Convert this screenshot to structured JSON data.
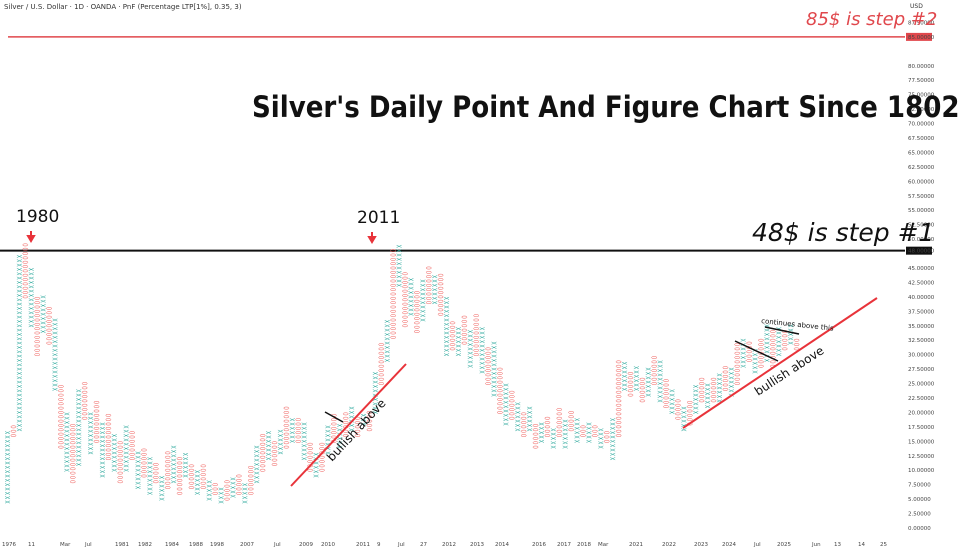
{
  "header": {
    "symbol": "Silver / U.S. Dollar · 1D · OANDA · PnF (Percentage LTP[1%], 0.35, 3)",
    "currency": "USD"
  },
  "annotations": {
    "title": "Silver's Daily Point And Figure Chart Since 1802",
    "step2": "85$ is step #2",
    "step1": "48$ is step #1",
    "year_1980": "1980",
    "year_2011": "2011",
    "bullish_above": "bullish above",
    "continues_above": "continues above this"
  },
  "colors": {
    "up": "#26a69a",
    "down": "#ef5350",
    "level_85": "#e0474c",
    "level_48": "#111111",
    "trendline": "#e8333a",
    "arrow": "#e8333a"
  },
  "chart_data": {
    "type": "point-and-figure",
    "symbol": "Silver / U.S. Dollar",
    "ylim": [
      0,
      90
    ],
    "yticks": [
      "0.00000",
      "2.50000",
      "5.00000",
      "7.50000",
      "10.00000",
      "12.50000",
      "15.00000",
      "17.50000",
      "20.00000",
      "22.50000",
      "25.00000",
      "27.50000",
      "30.00000",
      "32.50000",
      "35.00000",
      "37.50000",
      "40.00000",
      "42.50000",
      "45.00000",
      "48.00000",
      "50.00000",
      "52.50000",
      "55.00000",
      "57.50000",
      "60.00000",
      "62.50000",
      "65.00000",
      "67.50000",
      "70.00000",
      "72.50000",
      "75.00000",
      "77.50000",
      "80.00000",
      "85.00000",
      "87.50000"
    ],
    "highlighted_levels": [
      85,
      48
    ],
    "xticks": [
      "1976",
      "11",
      "Mar",
      "Jul",
      "1981",
      "1982",
      "1984",
      "1988",
      "1998",
      "2007",
      "Jul",
      "2009",
      "2010",
      "2011",
      "9",
      "Jul",
      "27",
      "2012",
      "2013",
      "2014",
      "2016",
      "2017",
      "2018",
      "Mar",
      "2021",
      "2022",
      "2023",
      "2024",
      "Jul",
      "2025",
      "Jun",
      "13",
      "14",
      "25"
    ],
    "columns": [
      [
        4.5,
        17
      ],
      [
        16,
        18
      ],
      [
        17,
        47
      ],
      [
        40,
        49
      ],
      [
        35,
        45
      ],
      [
        30,
        40
      ],
      [
        34,
        40
      ],
      [
        32,
        38
      ],
      [
        24,
        36
      ],
      [
        14,
        25
      ],
      [
        10,
        20
      ],
      [
        8,
        18
      ],
      [
        11,
        24
      ],
      [
        19,
        25
      ],
      [
        13,
        20
      ],
      [
        15,
        22
      ],
      [
        9,
        18
      ],
      [
        12,
        20
      ],
      [
        10,
        16
      ],
      [
        8,
        15
      ],
      [
        10,
        18
      ],
      [
        12,
        17
      ],
      [
        7,
        13
      ],
      [
        9,
        14
      ],
      [
        6,
        12
      ],
      [
        8,
        11
      ],
      [
        5,
        9
      ],
      [
        7,
        13
      ],
      [
        8,
        14
      ],
      [
        6,
        12
      ],
      [
        9,
        13
      ],
      [
        7,
        11
      ],
      [
        6,
        10
      ],
      [
        7,
        11
      ],
      [
        5,
        8
      ],
      [
        6,
        8
      ],
      [
        4.5,
        7
      ],
      [
        5,
        8
      ],
      [
        5.5,
        9
      ],
      [
        6,
        9
      ],
      [
        4.5,
        8
      ],
      [
        6,
        11
      ],
      [
        8,
        14
      ],
      [
        10,
        16
      ],
      [
        12,
        17
      ],
      [
        11,
        15
      ],
      [
        13,
        17
      ],
      [
        14,
        21
      ],
      [
        15,
        19
      ],
      [
        15,
        19
      ],
      [
        12,
        18
      ],
      [
        10,
        15
      ],
      [
        9,
        13
      ],
      [
        10,
        15
      ],
      [
        13,
        18
      ],
      [
        15,
        20
      ],
      [
        14,
        18
      ],
      [
        16,
        20
      ],
      [
        17,
        21
      ],
      [
        16,
        19
      ],
      [
        18,
        20
      ],
      [
        17,
        20
      ],
      [
        20,
        27
      ],
      [
        25,
        32
      ],
      [
        29,
        36
      ],
      [
        33,
        48
      ],
      [
        42,
        49
      ],
      [
        35,
        44
      ],
      [
        37,
        43
      ],
      [
        34,
        41
      ],
      [
        36,
        43
      ],
      [
        39,
        45
      ],
      [
        39,
        44
      ],
      [
        37,
        44
      ],
      [
        30,
        40
      ],
      [
        31,
        36
      ],
      [
        30,
        35
      ],
      [
        32,
        37
      ],
      [
        28,
        34
      ],
      [
        30,
        37
      ],
      [
        27,
        35
      ],
      [
        25,
        31
      ],
      [
        23,
        32
      ],
      [
        20,
        28
      ],
      [
        18,
        25
      ],
      [
        19,
        24
      ],
      [
        17,
        22
      ],
      [
        16,
        20
      ],
      [
        17,
        21
      ],
      [
        14,
        18
      ],
      [
        15,
        18
      ],
      [
        16,
        19
      ],
      [
        14,
        17
      ],
      [
        16,
        21
      ],
      [
        14,
        19
      ],
      [
        17,
        20
      ],
      [
        15,
        19
      ],
      [
        16,
        18
      ],
      [
        15,
        18
      ],
      [
        16,
        18
      ],
      [
        14,
        17
      ],
      [
        15,
        17
      ],
      [
        12,
        19
      ],
      [
        16,
        29
      ],
      [
        24,
        29
      ],
      [
        23,
        27
      ],
      [
        24,
        28
      ],
      [
        22,
        26
      ],
      [
        23,
        28
      ],
      [
        25,
        30
      ],
      [
        22,
        29
      ],
      [
        21,
        26
      ],
      [
        20,
        24
      ],
      [
        19,
        22
      ],
      [
        17,
        21
      ],
      [
        18,
        22
      ],
      [
        20,
        25
      ],
      [
        22,
        26
      ],
      [
        21,
        25
      ],
      [
        22,
        26
      ],
      [
        22,
        27
      ],
      [
        24,
        28
      ],
      [
        23,
        28
      ],
      [
        25,
        32
      ],
      [
        28,
        33
      ],
      [
        29,
        32
      ],
      [
        27,
        31
      ],
      [
        28,
        33
      ],
      [
        29,
        35
      ],
      [
        28,
        34
      ],
      [
        30,
        35
      ],
      [
        31,
        34
      ],
      [
        32,
        35
      ],
      [
        31,
        33
      ]
    ]
  }
}
